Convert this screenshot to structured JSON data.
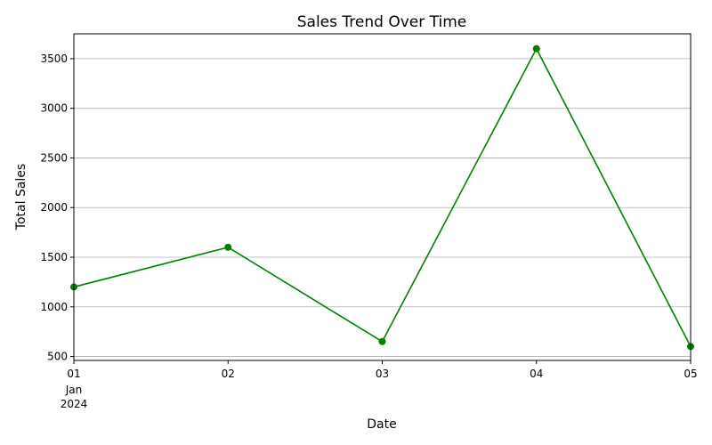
{
  "chart_data": {
    "type": "line",
    "title": "Sales Trend Over Time",
    "xlabel": "Date",
    "ylabel": "Total Sales",
    "x": [
      "2024-01-01",
      "2024-01-02",
      "2024-01-03",
      "2024-01-04",
      "2024-01-05"
    ],
    "x_tick_labels": [
      "01",
      "02",
      "03",
      "04",
      "05"
    ],
    "x_tick_sublabels": [
      "Jan",
      "2024"
    ],
    "series": [
      {
        "values": [
          1200,
          1600,
          650,
          3600,
          600
        ]
      }
    ],
    "ylim": [
      460,
      3750
    ],
    "y_ticks": [
      500,
      1000,
      1500,
      2000,
      2500,
      3000,
      3500
    ],
    "y_tick_labels": [
      "500",
      "1000",
      "1500",
      "2000",
      "2500",
      "3000",
      "3500"
    ],
    "grid": "horizontal",
    "line_color": "#008000",
    "marker": "circle"
  }
}
